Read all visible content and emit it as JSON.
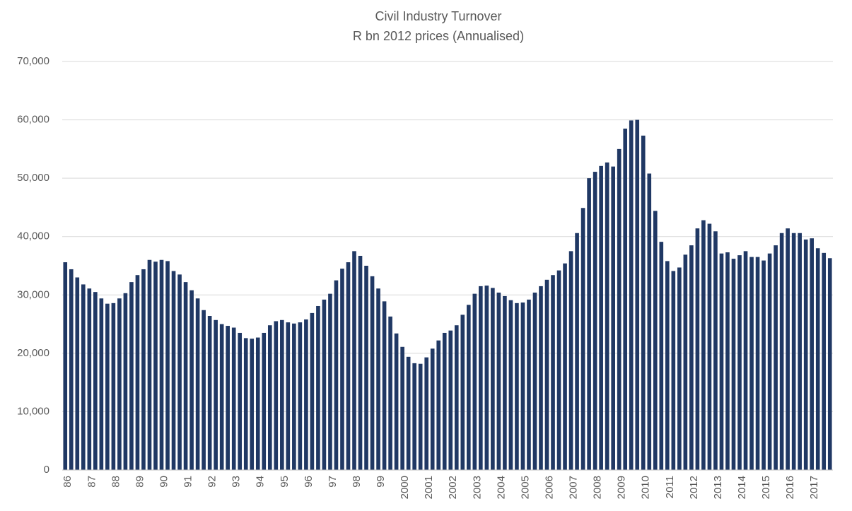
{
  "chart_data": {
    "type": "bar",
    "title": "Civil Industry Turnover",
    "subtitle": "R bn 2012 prices (Annualised)",
    "color": "#203864",
    "grid": true,
    "ylim": [
      0,
      70000
    ],
    "yticks": [
      0,
      {
        "value": 10000,
        "label": "10,000"
      },
      {
        "value": 20000,
        "label": "20,000"
      },
      {
        "value": 30000,
        "label": "30,000"
      },
      {
        "value": 40000,
        "label": "40,000"
      },
      {
        "value": 50000,
        "label": "50,000"
      },
      {
        "value": 60000,
        "label": "60,000"
      },
      {
        "value": 70000,
        "label": "70,000"
      }
    ],
    "categories": [
      "86",
      null,
      null,
      null,
      "87",
      null,
      null,
      null,
      "88",
      null,
      null,
      null,
      "89",
      null,
      null,
      null,
      "90",
      null,
      null,
      null,
      "91",
      null,
      null,
      null,
      "92",
      null,
      null,
      null,
      "93",
      null,
      null,
      null,
      "94",
      null,
      null,
      null,
      "95",
      null,
      null,
      null,
      "96",
      null,
      null,
      null,
      "97",
      null,
      null,
      null,
      "98",
      null,
      null,
      null,
      "99",
      null,
      null,
      null,
      "2000",
      null,
      null,
      null,
      "2001",
      null,
      null,
      null,
      "2002",
      null,
      null,
      null,
      "2003",
      null,
      null,
      null,
      "2004",
      null,
      null,
      null,
      "2005",
      null,
      null,
      null,
      "2006",
      null,
      null,
      null,
      "2007",
      null,
      null,
      null,
      "2008",
      null,
      null,
      null,
      "2009",
      null,
      null,
      null,
      "2010",
      null,
      null,
      null,
      "2011",
      null,
      null,
      null,
      "2012",
      null,
      null,
      null,
      "2013",
      null,
      null,
      null,
      "2014",
      null,
      null,
      null,
      "2015",
      null,
      null,
      null,
      "2016",
      null,
      null,
      null,
      "2017",
      null,
      null,
      null
    ],
    "values": [
      35600,
      34400,
      33000,
      31800,
      31100,
      30500,
      29400,
      28500,
      28600,
      29400,
      30300,
      32200,
      33400,
      34400,
      36000,
      35700,
      36000,
      35800,
      34100,
      33500,
      32200,
      30800,
      29400,
      27400,
      26400,
      25700,
      25000,
      24700,
      24400,
      23500,
      22600,
      22500,
      22700,
      23500,
      24800,
      25500,
      25700,
      25300,
      25100,
      25300,
      25800,
      26900,
      28100,
      29200,
      30200,
      32500,
      34500,
      35600,
      37500,
      36700,
      35000,
      33200,
      31100,
      28900,
      26300,
      23400,
      21100,
      19400,
      18300,
      18200,
      19300,
      20800,
      22200,
      23500,
      23900,
      24800,
      26600,
      28300,
      30200,
      31500,
      31600,
      31200,
      30400,
      29800,
      29100,
      28600,
      28700,
      29200,
      30400,
      31500,
      32600,
      33400,
      34200,
      35400,
      37500,
      40600,
      44900,
      50000,
      51100,
      52100,
      52700,
      52000,
      55000,
      58500,
      59900,
      60000,
      57300,
      50800,
      44400,
      39100,
      35800,
      34100,
      34700,
      36900,
      38500,
      41400,
      42800,
      42200,
      40900,
      37100,
      37300,
      36200,
      36800,
      37500,
      36500,
      36500,
      35900,
      37100,
      38500,
      40600,
      41400,
      40600,
      40600,
      39500,
      39700,
      38000,
      37200,
      36300
    ]
  }
}
